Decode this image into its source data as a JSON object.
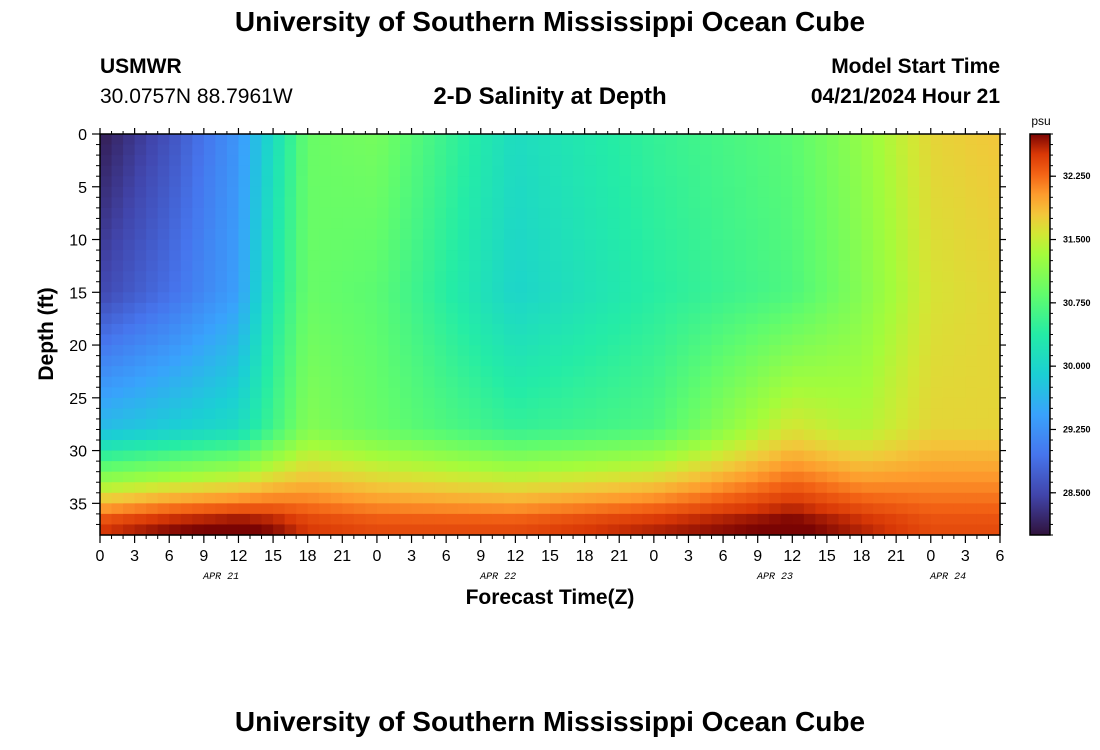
{
  "header": {
    "title": "University of Southern Mississippi Ocean Cube",
    "station": "USMWR",
    "coords": "30.0757N  88.7961W",
    "subtitle": "2-D Salinity at Depth",
    "start_label": "Model Start Time",
    "start_value": "04/21/2024 Hour 21"
  },
  "footer": {
    "title": "University of Southern Mississippi Ocean Cube"
  },
  "chart_data": {
    "type": "heatmap",
    "xlabel": "Forecast Time(Z)",
    "ylabel": "Depth (ft)",
    "ylim": [
      38,
      0
    ],
    "x_ticks": [
      "0",
      "3",
      "6",
      "9",
      "12",
      "15",
      "18",
      "21",
      "0",
      "3",
      "6",
      "9",
      "12",
      "15",
      "18",
      "21",
      "0",
      "3",
      "6",
      "9",
      "12",
      "15",
      "18",
      "21",
      "0",
      "3",
      "6"
    ],
    "date_labels": [
      {
        "label": "APR 21",
        "tick_index": 3.5
      },
      {
        "label": "APR 22",
        "tick_index": 11.5
      },
      {
        "label": "APR 23",
        "tick_index": 19.5
      },
      {
        "label": "APR 24",
        "tick_index": 24.5
      }
    ],
    "y_ticks": [
      0,
      5,
      10,
      15,
      20,
      25,
      30,
      35
    ],
    "colorbar": {
      "unit": "psu",
      "range": [
        28.0,
        32.75
      ],
      "ticks": [
        "28.500",
        "29.250",
        "30.000",
        "30.750",
        "31.500",
        "32.250"
      ],
      "tick_values": [
        28.5,
        29.25,
        30.0,
        30.75,
        31.5,
        32.25
      ]
    },
    "salinity_estimate_psu": {
      "hours": [
        0,
        6,
        12,
        15,
        18,
        24,
        36,
        48,
        60,
        66,
        72,
        78
      ],
      "surface_0ft": [
        28.1,
        28.6,
        29.3,
        30.1,
        30.9,
        31.0,
        30.1,
        30.5,
        30.8,
        31.2,
        31.7,
        31.8
      ],
      "mid_15ft": [
        28.5,
        28.9,
        29.4,
        30.3,
        30.9,
        30.8,
        30.0,
        30.4,
        30.7,
        31.1,
        31.6,
        31.7
      ],
      "deep_28ft": [
        29.7,
        29.9,
        30.1,
        30.6,
        31.1,
        30.9,
        30.5,
        30.7,
        31.6,
        31.4,
        31.7,
        31.7
      ],
      "bottom_37ft": [
        32.5,
        32.7,
        32.8,
        32.7,
        32.5,
        32.4,
        32.4,
        32.6,
        32.8,
        32.6,
        32.4,
        32.4
      ]
    }
  }
}
